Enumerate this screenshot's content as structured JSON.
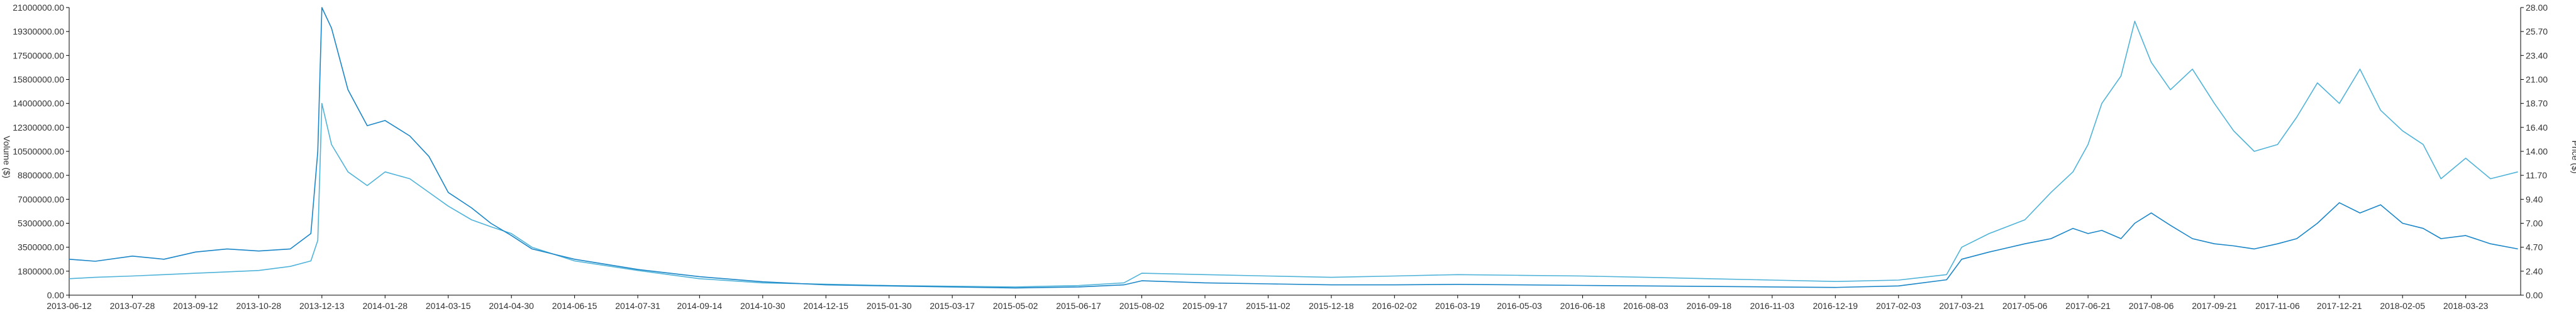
{
  "chart_data": {
    "type": "line",
    "title": "",
    "xlabel": "",
    "y_left_label": "Volume ($)",
    "y_right_label": "Price ($)",
    "x_tick_labels": [
      "2013-06-12",
      "2013-07-28",
      "2013-09-12",
      "2013-10-28",
      "2013-12-13",
      "2014-01-28",
      "2014-03-15",
      "2014-04-30",
      "2014-06-15",
      "2014-07-31",
      "2014-09-14",
      "2014-10-30",
      "2014-12-15",
      "2015-01-30",
      "2015-03-17",
      "2015-05-02",
      "2015-06-17",
      "2015-08-02",
      "2015-09-17",
      "2015-11-02",
      "2015-12-18",
      "2016-02-02",
      "2016-03-19",
      "2016-05-03",
      "2016-06-18",
      "2016-08-03",
      "2016-09-18",
      "2016-11-03",
      "2016-12-19",
      "2017-02-03",
      "2017-03-21",
      "2017-05-06",
      "2017-06-21",
      "2017-08-06",
      "2017-09-21",
      "2017-11-06",
      "2017-12-21",
      "2018-02-05",
      "2018-03-23"
    ],
    "y_left_ticks": [
      "0.00",
      "1800000.00",
      "3500000.00",
      "5300000.00",
      "7000000.00",
      "8800000.00",
      "10500000.00",
      "12300000.00",
      "14000000.00",
      "15800000.00",
      "17500000.00",
      "19300000.00",
      "21000000.00"
    ],
    "y_right_ticks": [
      "0.00",
      "2.40",
      "4.70",
      "7.00",
      "9.40",
      "11.70",
      "14.00",
      "16.40",
      "18.70",
      "21.00",
      "23.40",
      "25.70",
      "28.00"
    ],
    "y_left_range": [
      0,
      21000000
    ],
    "y_right_range": [
      0,
      28
    ],
    "grid": false,
    "legend": "none",
    "series": [
      {
        "axis": "left",
        "color": "#4fb3d9",
        "x": [
          "2013-06-12",
          "2013-07-01",
          "2013-07-28",
          "2013-08-20",
          "2013-09-12",
          "2013-10-05",
          "2013-10-28",
          "2013-11-20",
          "2013-12-05",
          "2013-12-10",
          "2013-12-13",
          "2013-12-20",
          "2014-01-01",
          "2014-01-15",
          "2014-01-28",
          "2014-02-15",
          "2014-03-01",
          "2014-03-15",
          "2014-04-01",
          "2014-04-15",
          "2014-04-30",
          "2014-05-15",
          "2014-06-15",
          "2014-07-31",
          "2014-09-14",
          "2014-10-30",
          "2014-12-15",
          "2015-01-30",
          "2015-03-17",
          "2015-05-02",
          "2015-06-17",
          "2015-07-20",
          "2015-08-02",
          "2015-09-17",
          "2015-11-02",
          "2015-12-18",
          "2016-02-02",
          "2016-03-19",
          "2016-05-03",
          "2016-06-18",
          "2016-08-03",
          "2016-09-18",
          "2016-11-03",
          "2016-12-19",
          "2017-02-03",
          "2017-03-10",
          "2017-03-21",
          "2017-04-10",
          "2017-05-06",
          "2017-05-25",
          "2017-06-10",
          "2017-06-21",
          "2017-07-01",
          "2017-07-15",
          "2017-07-25",
          "2017-08-06",
          "2017-08-20",
          "2017-09-05",
          "2017-09-21",
          "2017-10-05",
          "2017-10-20",
          "2017-11-06",
          "2017-11-20",
          "2017-12-05",
          "2017-12-21",
          "2018-01-05",
          "2018-01-20",
          "2018-02-05",
          "2018-02-20",
          "2018-03-05",
          "2018-03-23",
          "2018-04-10",
          "2018-04-30"
        ],
        "values": [
          1200000,
          1300000,
          1400000,
          1500000,
          1600000,
          1700000,
          1800000,
          2100000,
          2500000,
          4000000,
          14000000,
          11000000,
          9000000,
          8000000,
          9000000,
          8500000,
          7500000,
          6500000,
          5500000,
          5000000,
          4500000,
          3500000,
          2500000,
          1800000,
          1200000,
          900000,
          800000,
          700000,
          650000,
          600000,
          700000,
          900000,
          1600000,
          1500000,
          1400000,
          1300000,
          1400000,
          1500000,
          1450000,
          1400000,
          1300000,
          1200000,
          1100000,
          1000000,
          1100000,
          1500000,
          3500000,
          4500000,
          5500000,
          7500000,
          9000000,
          11000000,
          14000000,
          16000000,
          20000000,
          17000000,
          15000000,
          16500000,
          14000000,
          12000000,
          10500000,
          11000000,
          13000000,
          15500000,
          14000000,
          16500000,
          13500000,
          12000000,
          11000000,
          8500000,
          10000000,
          8500000,
          9000000
        ]
      },
      {
        "axis": "right",
        "color": "#1a86c8",
        "x": [
          "2013-06-12",
          "2013-07-01",
          "2013-07-28",
          "2013-08-20",
          "2013-09-12",
          "2013-10-05",
          "2013-10-28",
          "2013-11-20",
          "2013-12-05",
          "2013-12-10",
          "2013-12-13",
          "2013-12-20",
          "2014-01-01",
          "2014-01-15",
          "2014-01-28",
          "2014-02-15",
          "2014-03-01",
          "2014-03-15",
          "2014-04-01",
          "2014-04-15",
          "2014-04-30",
          "2014-05-15",
          "2014-06-15",
          "2014-07-31",
          "2014-09-14",
          "2014-10-30",
          "2014-12-15",
          "2015-01-30",
          "2015-03-17",
          "2015-05-02",
          "2015-06-17",
          "2015-07-20",
          "2015-08-02",
          "2015-09-17",
          "2015-11-02",
          "2015-12-18",
          "2016-02-02",
          "2016-03-19",
          "2016-05-03",
          "2016-06-18",
          "2016-08-03",
          "2016-09-18",
          "2016-11-03",
          "2016-12-19",
          "2017-02-03",
          "2017-03-10",
          "2017-03-21",
          "2017-04-10",
          "2017-05-06",
          "2017-05-25",
          "2017-06-10",
          "2017-06-21",
          "2017-07-01",
          "2017-07-15",
          "2017-07-25",
          "2017-08-06",
          "2017-08-20",
          "2017-09-05",
          "2017-09-21",
          "2017-10-05",
          "2017-10-20",
          "2017-11-06",
          "2017-11-20",
          "2017-12-05",
          "2017-12-21",
          "2018-01-05",
          "2018-01-20",
          "2018-02-05",
          "2018-02-20",
          "2018-03-05",
          "2018-03-23",
          "2018-04-10",
          "2018-04-30"
        ],
        "values": [
          3.5,
          3.3,
          3.8,
          3.5,
          4.2,
          4.5,
          4.3,
          4.5,
          6.0,
          14.0,
          28.0,
          26.0,
          20.0,
          16.5,
          17.0,
          15.5,
          13.5,
          10.0,
          8.5,
          7.0,
          5.8,
          4.5,
          3.5,
          2.5,
          1.8,
          1.3,
          1.0,
          0.9,
          0.8,
          0.7,
          0.8,
          1.0,
          1.4,
          1.2,
          1.1,
          1.0,
          1.0,
          1.05,
          1.0,
          0.95,
          0.9,
          0.85,
          0.8,
          0.75,
          0.9,
          1.5,
          3.5,
          4.2,
          5.0,
          5.5,
          6.5,
          6.0,
          6.3,
          5.5,
          7.0,
          8.0,
          6.8,
          5.5,
          5.0,
          4.8,
          4.5,
          5.0,
          5.5,
          7.0,
          9.0,
          8.0,
          8.8,
          7.0,
          6.5,
          5.5,
          5.8,
          5.0,
          4.5
        ]
      }
    ]
  }
}
